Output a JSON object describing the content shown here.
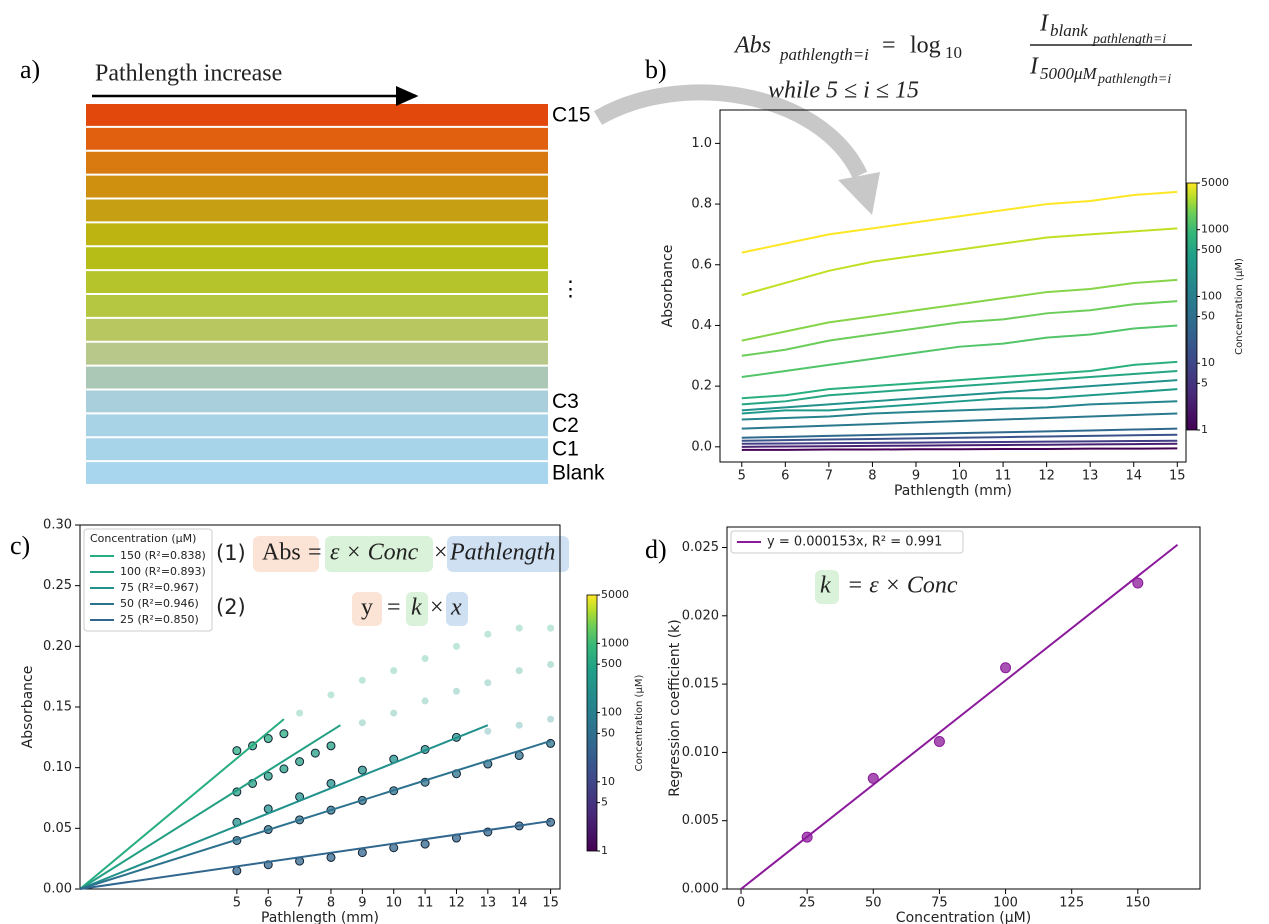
{
  "panel_labels": [
    "a)",
    "b)",
    "c)",
    "d)"
  ],
  "panel_a": {
    "arrow_label": "Pathlength increase",
    "ellipsis": "⋮",
    "strip_colors": [
      "#e2470c",
      "#e06010",
      "#d97a10",
      "#cf9010",
      "#c6a012",
      "#bdb412",
      "#b5bd16",
      "#b5c42a",
      "#b5c640",
      "#b8c760",
      "#b7c88a",
      "#abc8b6",
      "#a9cfdc",
      "#a8d3e6",
      "#a8d4ea",
      "#a8d6ee"
    ],
    "row_labels": [
      "C15",
      null,
      null,
      null,
      null,
      null,
      null,
      null,
      null,
      null,
      null,
      null,
      "C3",
      "C2",
      "C1",
      "Blank"
    ]
  },
  "chart_data": [
    {
      "type": "line",
      "xlabel": "Pathlength (mm)",
      "ylabel": "Absorbance",
      "equation": {
        "lhs": "Abs",
        "lhs_sub": "pathlength=i",
        "op": "=",
        "log": "log",
        "log_base": "10",
        "num": "I",
        "num_sub": "blank",
        "num_subsub": "pathlength=i",
        "den": "I",
        "den_sub": "5000μM",
        "den_subsub": "pathlength=i",
        "condition": "while 5  ≤ i ≤ 15"
      },
      "x": [
        5,
        6,
        7,
        8,
        9,
        10,
        11,
        12,
        13,
        14,
        15
      ],
      "xlim": [
        4.5,
        15.2
      ],
      "xticks": [
        5,
        6,
        7,
        8,
        9,
        10,
        11,
        12,
        13,
        14,
        15
      ],
      "ylim": [
        -0.05,
        1.11
      ],
      "yticks": [
        {
          "value": 0,
          "label": "0.0"
        },
        0.2,
        0.4,
        0.6,
        0.8,
        {
          "value": 1,
          "label": "1.0"
        }
      ],
      "series": [
        {
          "color": "#fde725",
          "values": [
            0.64,
            0.67,
            0.7,
            0.72,
            0.74,
            0.76,
            0.78,
            0.8,
            0.81,
            0.83,
            0.84
          ]
        },
        {
          "color": "#c2df23",
          "values": [
            0.5,
            0.54,
            0.58,
            0.61,
            0.63,
            0.65,
            0.67,
            0.69,
            0.7,
            0.71,
            0.72
          ]
        },
        {
          "color": "#86d549",
          "values": [
            0.35,
            0.38,
            0.41,
            0.43,
            0.45,
            0.47,
            0.49,
            0.51,
            0.52,
            0.54,
            0.55
          ]
        },
        {
          "color": "#6ccd5a",
          "values": [
            0.3,
            0.32,
            0.35,
            0.37,
            0.39,
            0.41,
            0.42,
            0.44,
            0.45,
            0.47,
            0.48
          ]
        },
        {
          "color": "#52c569",
          "values": [
            0.23,
            0.25,
            0.27,
            0.29,
            0.31,
            0.33,
            0.34,
            0.36,
            0.37,
            0.39,
            0.4
          ]
        },
        {
          "color": "#2ab07f",
          "values": [
            0.16,
            0.17,
            0.19,
            0.2,
            0.21,
            0.22,
            0.23,
            0.24,
            0.25,
            0.27,
            0.28
          ]
        },
        {
          "color": "#25a584",
          "values": [
            0.14,
            0.15,
            0.17,
            0.18,
            0.19,
            0.2,
            0.21,
            0.22,
            0.23,
            0.24,
            0.25
          ]
        },
        {
          "color": "#21918c",
          "values": [
            0.12,
            0.13,
            0.14,
            0.15,
            0.16,
            0.17,
            0.18,
            0.19,
            0.2,
            0.21,
            0.22
          ]
        },
        {
          "color": "#1f9a8a",
          "values": [
            0.11,
            0.12,
            0.12,
            0.13,
            0.14,
            0.15,
            0.16,
            0.16,
            0.17,
            0.18,
            0.19
          ]
        },
        {
          "color": "#25848e",
          "values": [
            0.09,
            0.095,
            0.1,
            0.11,
            0.115,
            0.12,
            0.125,
            0.13,
            0.14,
            0.145,
            0.15
          ]
        },
        {
          "color": "#2a788e",
          "values": [
            0.06,
            0.065,
            0.07,
            0.075,
            0.08,
            0.085,
            0.09,
            0.095,
            0.1,
            0.105,
            0.11
          ]
        },
        {
          "color": "#30698e",
          "values": [
            0.03,
            0.033,
            0.036,
            0.039,
            0.042,
            0.045,
            0.048,
            0.051,
            0.054,
            0.057,
            0.06
          ]
        },
        {
          "color": "#3b528b",
          "values": [
            0.02,
            0.022,
            0.024,
            0.026,
            0.028,
            0.03,
            0.032,
            0.034,
            0.036,
            0.038,
            0.04
          ]
        },
        {
          "color": "#433e85",
          "values": [
            0.01,
            0.011,
            0.012,
            0.013,
            0.014,
            0.015,
            0.016,
            0.017,
            0.018,
            0.019,
            0.02
          ]
        },
        {
          "color": "#482173",
          "values": [
            0.0,
            0.001,
            0.002,
            0.003,
            0.004,
            0.005,
            0.006,
            0.007,
            0.008,
            0.009,
            0.01
          ]
        },
        {
          "color": "#440154",
          "values": [
            -0.01,
            -0.01,
            -0.009,
            -0.009,
            -0.008,
            -0.008,
            -0.007,
            -0.007,
            -0.006,
            -0.006,
            -0.005
          ]
        }
      ],
      "colorbar": {
        "label": "Concentration (μM)",
        "lim": [
          1,
          5000
        ],
        "log": true,
        "ticks": [
          1,
          5,
          10,
          50,
          100,
          500,
          1000,
          5000
        ]
      }
    },
    {
      "type": "scatter",
      "xlabel": "Pathlength (mm)",
      "ylabel": "Absorbance",
      "legend_title": "Concentration (μM)",
      "equations": {
        "n1": "(1)",
        "abs": "Abs",
        "eq": "=",
        "eps_conc": "ε × Conc",
        "times": "×",
        "path": "Pathlength",
        "n2": "(2)",
        "y": "y",
        "k": "k",
        "x": "x"
      },
      "xlim": [
        0,
        15.3
      ],
      "xticks": [
        5,
        6,
        7,
        8,
        9,
        10,
        11,
        12,
        13,
        14,
        15
      ],
      "ylim": [
        0,
        0.3
      ],
      "yticks": [
        {
          "value": 0,
          "label": "0.00"
        },
        0.05,
        {
          "value": 0.1,
          "label": "0.10"
        },
        0.15,
        {
          "value": 0.2,
          "label": "0.20"
        },
        0.25,
        {
          "value": 0.3,
          "label": "0.30"
        }
      ],
      "series": [
        {
          "name": "150 (R²=0.838)",
          "color": "#27ad81",
          "x": [
            5,
            5.5,
            6,
            6.5
          ],
          "values": [
            0.114,
            0.118,
            0.124,
            0.128
          ],
          "faded_x": [
            7,
            8,
            9,
            10,
            11,
            12,
            13,
            14,
            15
          ],
          "faded_values": [
            0.145,
            0.16,
            0.172,
            0.18,
            0.19,
            0.2,
            0.21,
            0.215,
            0.215
          ],
          "fit_x": [
            0,
            6.5
          ],
          "fit_values": [
            0,
            0.14
          ]
        },
        {
          "name": "100 (R²=0.893)",
          "color": "#23a083",
          "x": [
            5,
            5.5,
            6,
            6.5,
            7,
            7.5,
            8
          ],
          "values": [
            0.08,
            0.087,
            0.093,
            0.099,
            0.105,
            0.112,
            0.118
          ],
          "faded_x": [
            9,
            10,
            11,
            12,
            13,
            14,
            15
          ],
          "faded_values": [
            0.137,
            0.145,
            0.155,
            0.163,
            0.17,
            0.18,
            0.185
          ],
          "fit_x": [
            0,
            8.3
          ],
          "fit_values": [
            0,
            0.135
          ]
        },
        {
          "name": "75 (R²=0.967)",
          "color": "#21918c",
          "x": [
            5,
            6,
            7,
            8,
            9,
            10,
            11,
            12
          ],
          "values": [
            0.055,
            0.066,
            0.076,
            0.087,
            0.098,
            0.107,
            0.115,
            0.125
          ],
          "faded_x": [
            13,
            14,
            15
          ],
          "faded_values": [
            0.13,
            0.135,
            0.14
          ],
          "fit_x": [
            0,
            13
          ],
          "fit_values": [
            0,
            0.135
          ]
        },
        {
          "name": "50 (R²=0.946)",
          "color": "#2c728e",
          "x": [
            5,
            6,
            7,
            8,
            9,
            10,
            11,
            12,
            13,
            14,
            15
          ],
          "values": [
            0.04,
            0.049,
            0.057,
            0.065,
            0.073,
            0.081,
            0.088,
            0.095,
            0.103,
            0.11,
            0.12
          ],
          "fit_x": [
            0,
            15
          ],
          "fit_values": [
            0,
            0.122
          ]
        },
        {
          "name": "25 (R²=0.850)",
          "color": "#31668e",
          "x": [
            5,
            6,
            7,
            8,
            9,
            10,
            11,
            12,
            13,
            14,
            15
          ],
          "values": [
            0.015,
            0.02,
            0.023,
            0.026,
            0.03,
            0.034,
            0.037,
            0.042,
            0.047,
            0.052,
            0.055
          ],
          "fit_x": [
            0,
            15
          ],
          "fit_values": [
            0,
            0.056
          ]
        }
      ],
      "colorbar": {
        "label": "Concentration (μM)",
        "lim": [
          1,
          5000
        ],
        "log": true,
        "ticks": [
          1,
          5,
          10,
          50,
          100,
          500,
          1000,
          5000
        ]
      }
    },
    {
      "type": "scatter",
      "xlabel": "Concentration (μM)",
      "ylabel": "Regression coefficient (k)",
      "equations": {
        "k": "k",
        "rhs": "= ε × Conc"
      },
      "xlim": [
        -5.3,
        173.5
      ],
      "xticks": [
        0,
        25,
        50,
        75,
        100,
        125,
        150
      ],
      "ylim": [
        0,
        0.0265
      ],
      "yticks": [
        {
          "value": 0,
          "label": "0.000"
        },
        0.005,
        {
          "value": 0.01,
          "label": "0.010"
        },
        0.015,
        {
          "value": 0.02,
          "label": "0.020"
        },
        0.025
      ],
      "series": [
        {
          "name": "y = 0.000153x, R² = 0.991",
          "color": "#8b1a9b",
          "x": [
            25,
            50,
            75,
            100,
            150
          ],
          "values": [
            0.0038,
            0.0081,
            0.0108,
            0.0162,
            0.0224
          ],
          "fit_x": [
            0,
            165
          ],
          "fit_values": [
            0,
            0.0252
          ]
        }
      ]
    }
  ]
}
